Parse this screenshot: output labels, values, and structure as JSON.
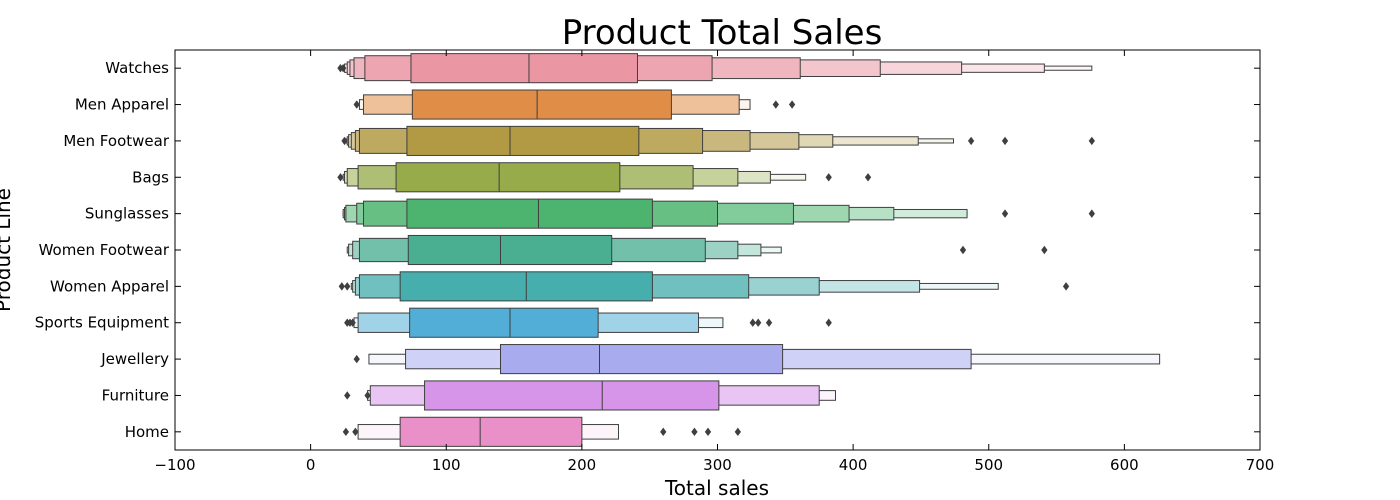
{
  "chart_data": {
    "type": "boxen",
    "orientation": "horizontal",
    "title": "Product Total Sales",
    "xlabel": "Total sales",
    "ylabel": "Product Line",
    "xlim": [
      -100,
      700
    ],
    "xticks": [
      -100,
      0,
      100,
      200,
      300,
      400,
      500,
      600,
      700
    ],
    "grid": false,
    "legend": "none",
    "categories": [
      "Watches",
      "Men Apparel",
      "Men Footwear",
      "Bags",
      "Sunglasses",
      "Women Footwear",
      "Women Apparel",
      "Sports Equipment",
      "Jewellery",
      "Furniture",
      "Home"
    ],
    "series": [
      {
        "category": "Watches",
        "color": "#ea96a3",
        "median": 161,
        "boxes": [
          [
            74,
            241
          ],
          [
            40,
            296
          ],
          [
            32,
            361
          ],
          [
            29,
            420
          ],
          [
            27,
            480
          ],
          [
            25,
            541
          ],
          [
            24,
            576
          ]
        ],
        "outliers": [
          22,
          24
        ]
      },
      {
        "category": "Men Apparel",
        "color": "#e08e47",
        "median": 167,
        "boxes": [
          [
            75,
            266
          ],
          [
            39,
            316
          ],
          [
            36,
            324
          ]
        ],
        "outliers": [
          34,
          343,
          355
        ]
      },
      {
        "category": "Men Footwear",
        "color": "#b29a45",
        "median": 147,
        "boxes": [
          [
            71,
            242
          ],
          [
            36,
            289
          ],
          [
            33,
            324
          ],
          [
            30,
            360
          ],
          [
            28,
            385
          ],
          [
            27,
            448
          ],
          [
            26,
            474
          ]
        ],
        "outliers": [
          25,
          487,
          512,
          576
        ]
      },
      {
        "category": "Bags",
        "color": "#97ab4b",
        "median": 139,
        "boxes": [
          [
            63,
            228
          ],
          [
            35,
            282
          ],
          [
            27,
            315
          ],
          [
            25,
            339
          ],
          [
            24,
            365
          ]
        ],
        "outliers": [
          22,
          382,
          411
        ]
      },
      {
        "category": "Sunglasses",
        "color": "#4cb46e",
        "median": 168,
        "boxes": [
          [
            71,
            252
          ],
          [
            39,
            300
          ],
          [
            34,
            356
          ],
          [
            26,
            397
          ],
          [
            25,
            430
          ],
          [
            24,
            484
          ],
          [
            24,
            484
          ]
        ],
        "outliers": [
          512,
          576
        ]
      },
      {
        "category": "Women Footwear",
        "color": "#4aae91",
        "median": 140,
        "boxes": [
          [
            72,
            222
          ],
          [
            36,
            291
          ],
          [
            31,
            315
          ],
          [
            28,
            332
          ],
          [
            27,
            347
          ]
        ],
        "outliers": [
          481,
          541
        ]
      },
      {
        "category": "Women Apparel",
        "color": "#47aeae",
        "median": 159,
        "boxes": [
          [
            66,
            252
          ],
          [
            36,
            323
          ],
          [
            33,
            375
          ],
          [
            31,
            449
          ],
          [
            30,
            507
          ]
        ],
        "outliers": [
          23,
          27,
          557
        ]
      },
      {
        "category": "Sports Equipment",
        "color": "#52aed6",
        "median": 147,
        "boxes": [
          [
            73,
            212
          ],
          [
            35,
            286
          ],
          [
            32,
            304
          ]
        ],
        "outliers": [
          27,
          29,
          31,
          326,
          330,
          338,
          382
        ]
      },
      {
        "category": "Jewellery",
        "color": "#a8abee",
        "median": 213,
        "boxes": [
          [
            140,
            348
          ],
          [
            70,
            487
          ],
          [
            43,
            626
          ]
        ],
        "outliers": [
          34
        ]
      },
      {
        "category": "Furniture",
        "color": "#d695e9",
        "median": 215,
        "boxes": [
          [
            84,
            301
          ],
          [
            44,
            375
          ],
          [
            42,
            387
          ]
        ],
        "outliers": [
          27,
          42
        ]
      },
      {
        "category": "Home",
        "color": "#ea90c9",
        "median": 125,
        "boxes": [
          [
            66,
            200
          ],
          [
            35,
            227
          ]
        ],
        "outliers": [
          26,
          33,
          260,
          283,
          293,
          315
        ]
      }
    ]
  }
}
